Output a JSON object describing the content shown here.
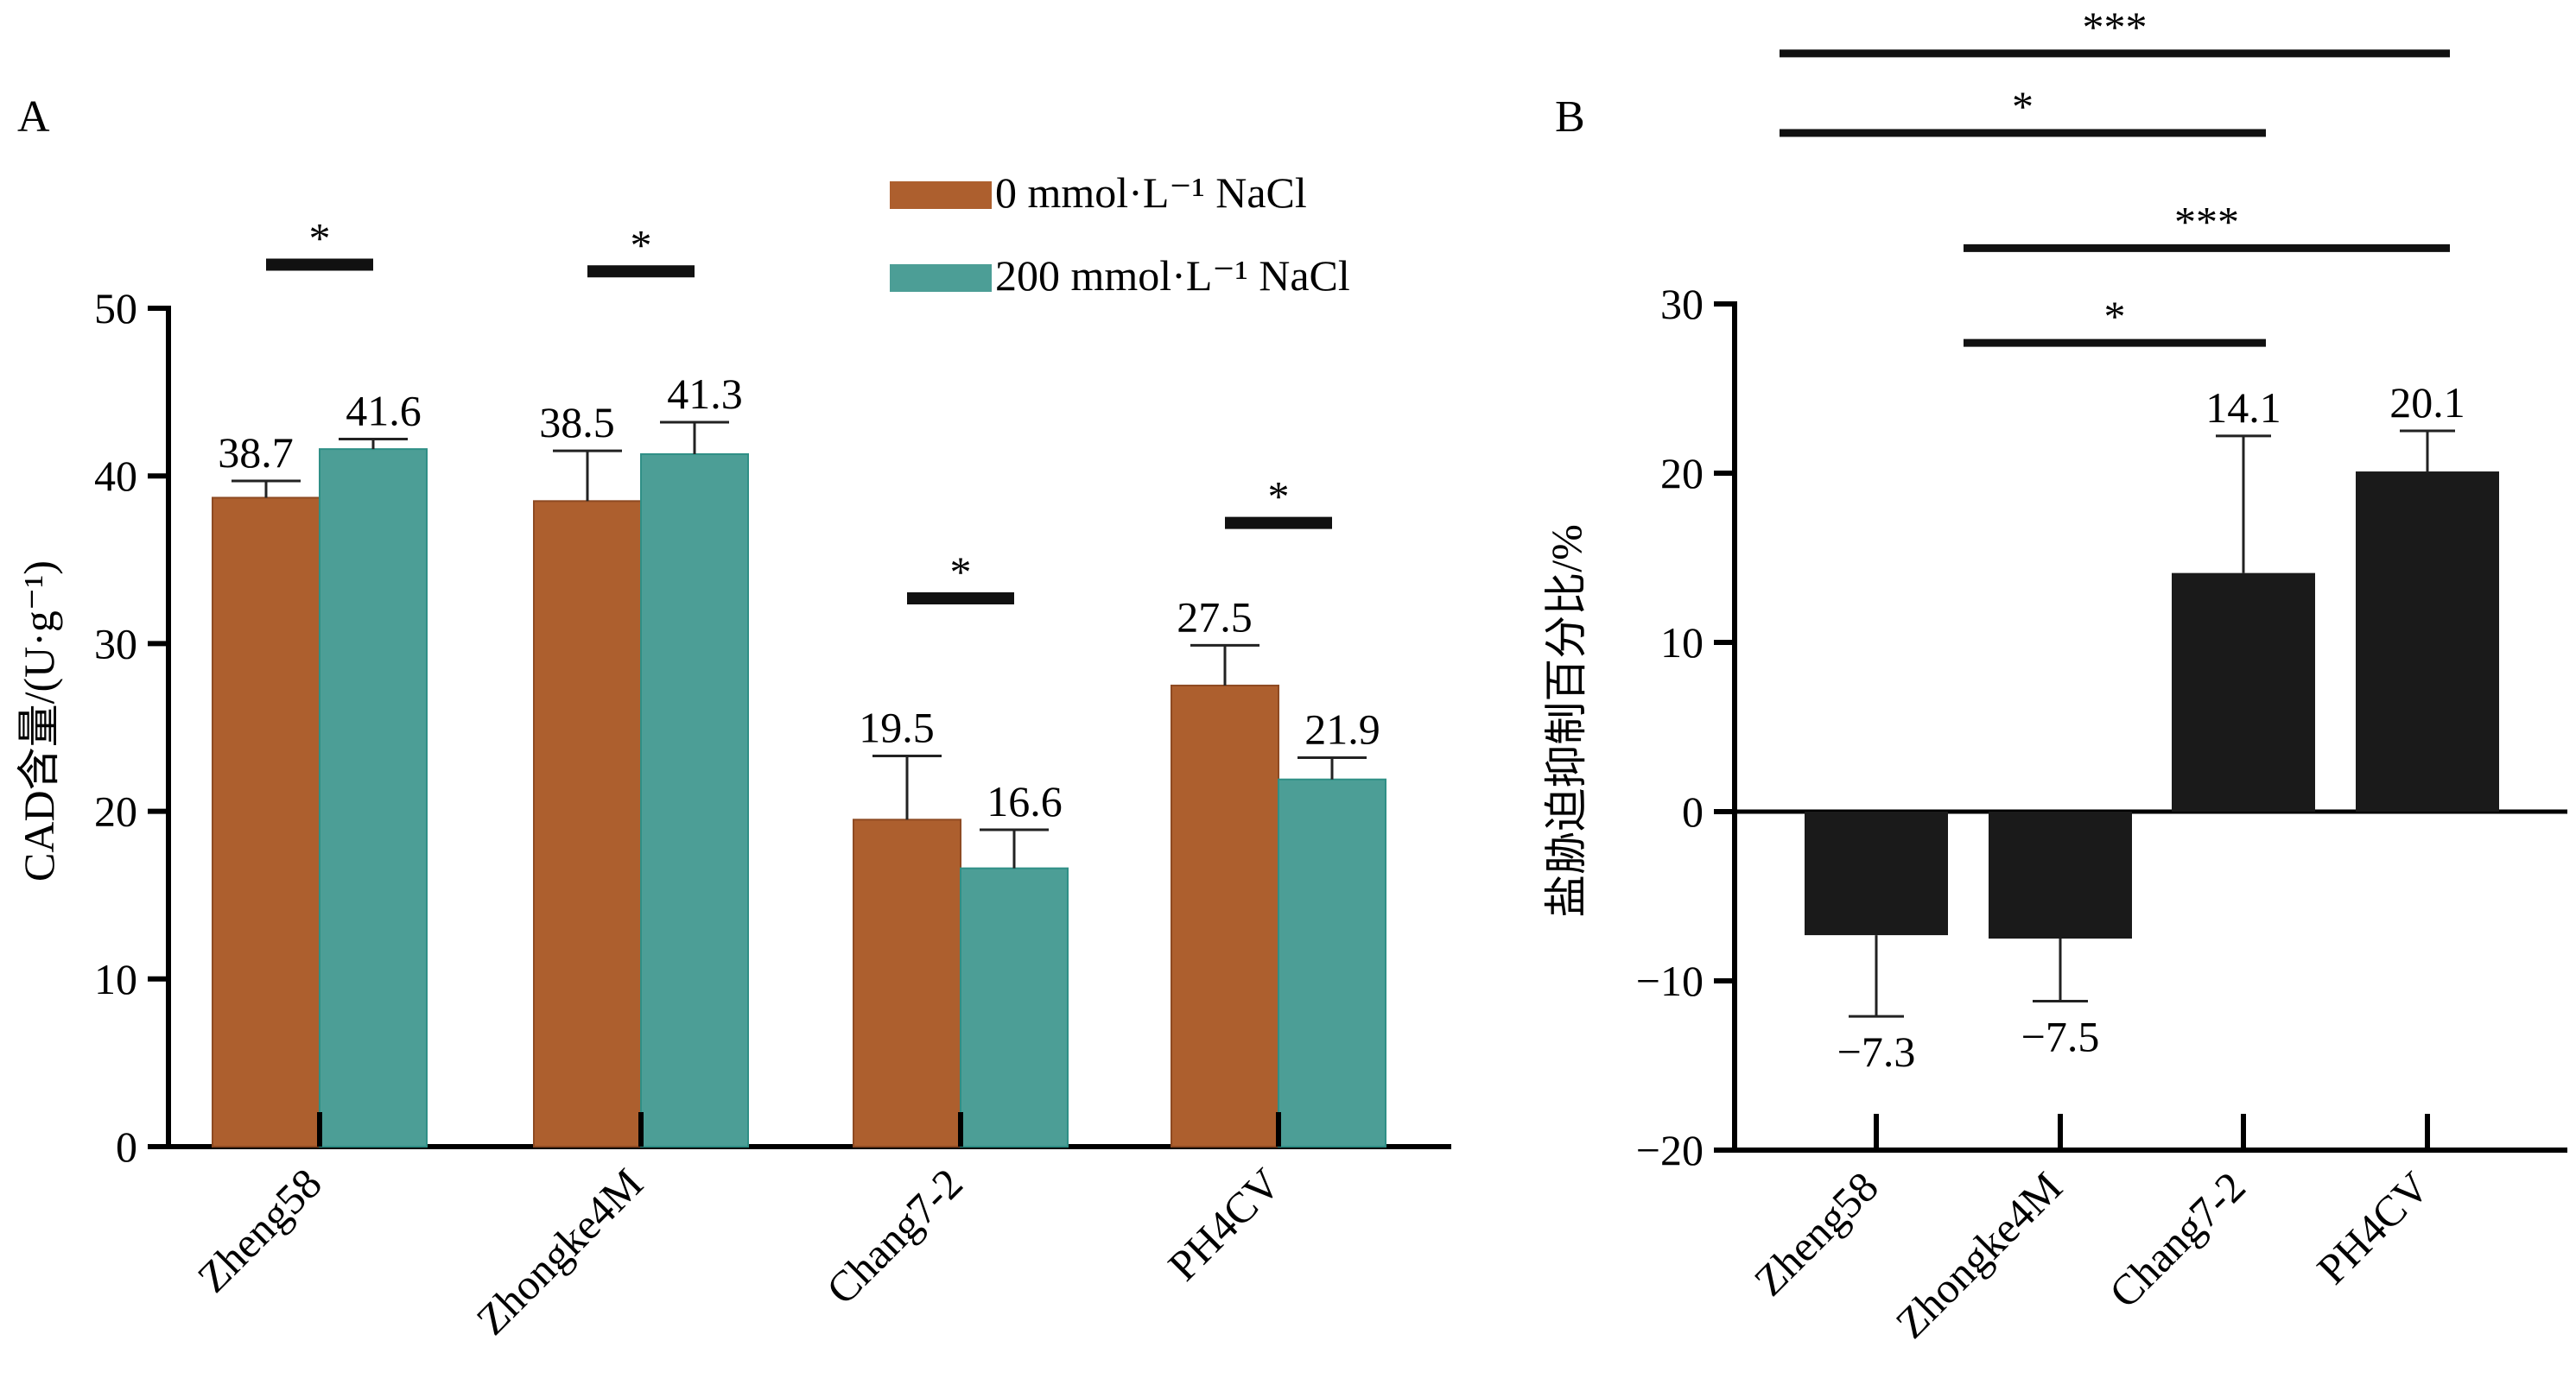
{
  "panels": {
    "a_label": "A",
    "b_label": "B"
  },
  "chart_data": [
    {
      "type": "bar",
      "panel": "A",
      "ylabel": "CAD含量/(U·g⁻¹)",
      "ylim": [
        0,
        50
      ],
      "yticks": [
        0,
        10,
        20,
        30,
        40,
        50
      ],
      "categories": [
        "Zheng58",
        "Zhongke4M",
        "Chang7-2",
        "PH4CV"
      ],
      "series": [
        {
          "name": "0 mmol·L⁻¹ NaCl",
          "color": "#ad5f2e",
          "values": [
            38.7,
            38.5,
            19.5,
            27.5
          ],
          "errors": [
            1.0,
            3.0,
            3.8,
            2.4
          ]
        },
        {
          "name": "200 mmol·L⁻¹ NaCl",
          "color": "#4c9e96",
          "values": [
            41.6,
            41.3,
            16.6,
            21.9
          ],
          "errors": [
            0.6,
            1.9,
            2.3,
            1.3
          ]
        }
      ],
      "value_labels": [
        [
          "38.7",
          "38.5",
          "19.5",
          "27.5"
        ],
        [
          "41.6",
          "41.3",
          "16.6",
          "21.9"
        ]
      ],
      "significance": [
        {
          "category": 0,
          "label": "*",
          "y": 52.6
        },
        {
          "category": 1,
          "label": "*",
          "y": 52.2
        },
        {
          "category": 2,
          "label": "*",
          "y": 32.7
        },
        {
          "category": 3,
          "label": "*",
          "y": 37.2
        }
      ],
      "legend_position": "top-right"
    },
    {
      "type": "bar",
      "panel": "B",
      "ylabel": "盐胁迫抑制百分比/%",
      "ylim": [
        -20,
        30
      ],
      "yticks": [
        -20,
        -10,
        0,
        10,
        20,
        30
      ],
      "categories": [
        "Zheng58",
        "Zhongke4M",
        "Chang7-2",
        "PH4CV"
      ],
      "series": [
        {
          "color": "#1a1a1a",
          "values": [
            -7.3,
            -7.5,
            14.1,
            20.1
          ],
          "errors": [
            4.8,
            3.7,
            8.1,
            2.4
          ]
        }
      ],
      "value_labels": [
        "−7.3",
        "−7.5",
        "14.1",
        "20.1"
      ],
      "significance": [
        {
          "from": 0,
          "to": 3,
          "label": "***",
          "y": 44.8
        },
        {
          "from": 0,
          "to": 2,
          "label": "*",
          "y": 40.1
        },
        {
          "from": 1,
          "to": 3,
          "label": "***",
          "y": 33.3
        },
        {
          "from": 1,
          "to": 2,
          "label": "*",
          "y": 27.7
        }
      ]
    }
  ]
}
